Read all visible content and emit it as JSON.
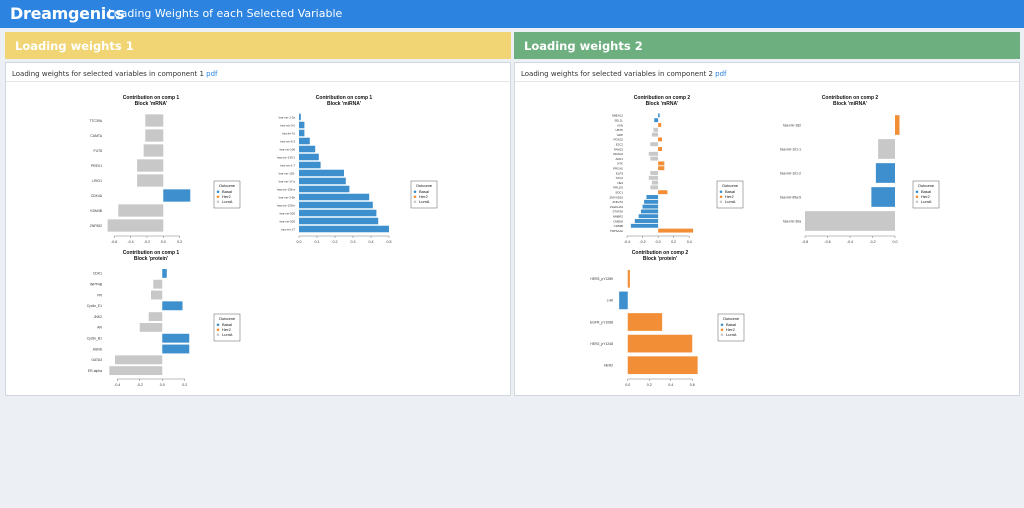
{
  "header": {
    "logo": "Dreamgenics",
    "title": "Loading Weights of each Selected Variable"
  },
  "panels": [
    {
      "title": "Loading weights 1",
      "color": "#f1d574",
      "caption": "Loading weights for selected variables in component 1",
      "pdf": "pdf"
    },
    {
      "title": "Loading weights 2",
      "color": "#6eaf80",
      "caption": "Loading weights for selected variables in component 2",
      "pdf": "pdf"
    }
  ],
  "colors": {
    "Basal": "#3d8fcd",
    "Her2": "#f28e36",
    "LumA": "#c8c8c8"
  },
  "chart_data": [
    {
      "type": "bar",
      "orientation": "horizontal",
      "title": "Contribution on comp 1",
      "subtitle": "Block 'mRNA'",
      "categories": [
        "TTC39A",
        "CAMTA",
        "FUT8",
        "PREX1",
        "LRIG1",
        "CDK4A",
        "KDM4B",
        "ZNF552"
      ],
      "values": [
        -0.22,
        -0.22,
        -0.24,
        -0.32,
        -0.32,
        0.33,
        -0.55,
        -0.68
      ],
      "groups": [
        "LumA",
        "LumA",
        "LumA",
        "LumA",
        "LumA",
        "Basal",
        "LumA",
        "LumA"
      ],
      "xlim": [
        -0.7,
        0.4
      ],
      "xticks": [
        -0.6,
        -0.4,
        -0.2,
        0.0,
        0.2
      ],
      "legend": {
        "title": "Outcome",
        "entries": [
          "Basal",
          "Her2",
          "LumA"
        ]
      }
    },
    {
      "type": "bar",
      "orientation": "horizontal",
      "title": "Contribution on comp 1",
      "subtitle": "Block 'miRNA'",
      "categories": [
        "hsa-mir-1-3a",
        "hsa-mir-3-0",
        "hsa-let-7d",
        "hsa-mir-5-3",
        "hsa-mir-106",
        "hsa-mir-130-1",
        "hsa-mir-1-7",
        "hsa-mir-153-",
        "hsa-mir-17-a",
        "hsa-mir-196-a",
        "hsa-mir-3-5b",
        "hsa-mir-130-b",
        "hsa-mir-505",
        "hsa-mir-505",
        "hsa-mir-17"
      ],
      "values": [
        0.01,
        0.03,
        0.03,
        0.06,
        0.09,
        0.11,
        0.12,
        0.25,
        0.26,
        0.28,
        0.39,
        0.41,
        0.43,
        0.44,
        0.5
      ],
      "groups": [
        "Basal",
        "Basal",
        "Basal",
        "Basal",
        "Basal",
        "Basal",
        "Basal",
        "Basal",
        "Basal",
        "Basal",
        "Basal",
        "Basal",
        "Basal",
        "Basal",
        "Basal"
      ],
      "xlim": [
        0,
        0.5
      ],
      "xticks": [
        0.0,
        0.1,
        0.2,
        0.3,
        0.4,
        0.5
      ],
      "legend": {
        "title": "Outcome",
        "entries": [
          "Basal",
          "Her2",
          "LumA"
        ]
      }
    },
    {
      "type": "bar",
      "orientation": "horizontal",
      "title": "Contribution on comp 1",
      "subtitle": "Block 'protein'",
      "categories": [
        "CDK1",
        "INPP4B",
        "PR",
        "Cyclin_E1",
        "JNK2",
        "AR",
        "Cyclin_B1",
        "ASNS",
        "GATA3",
        "ER-alpha"
      ],
      "values": [
        0.04,
        -0.08,
        -0.1,
        0.18,
        -0.12,
        -0.2,
        0.24,
        0.24,
        -0.42,
        -0.47
      ],
      "groups": [
        "Basal",
        "LumA",
        "LumA",
        "Basal",
        "LumA",
        "LumA",
        "Basal",
        "Basal",
        "LumA",
        "LumA"
      ],
      "xlim": [
        -0.5,
        0.3
      ],
      "xticks": [
        -0.4,
        -0.2,
        0.0,
        0.2
      ],
      "legend": {
        "title": "Outcome",
        "entries": [
          "Basal",
          "Her2",
          "LumA"
        ]
      }
    },
    {
      "type": "bar",
      "orientation": "horizontal",
      "title": "Contribution on comp 2",
      "subtitle": "Block 'mRNA'",
      "categories": [
        "NBEAL2",
        "SEL1L",
        "ASN",
        "UBTF",
        "GRP",
        "PDSS2",
        "E2C2",
        "FAM22",
        "DDAH2",
        "AKR1",
        "NTK",
        "PRCAS",
        "ELP3",
        "STC2",
        "NE3",
        "PRLDS",
        "SDC1",
        "ZMYND10",
        "ZNF270",
        "PLEKHA4",
        "STAT5A",
        "NMBR2",
        "CNBD8",
        "CD83B",
        "TRPSA4A"
      ],
      "values": [
        0.02,
        -0.05,
        0.04,
        -0.06,
        -0.08,
        0.05,
        -0.1,
        0.05,
        -0.12,
        -0.1,
        0.08,
        0.08,
        -0.1,
        -0.12,
        -0.08,
        -0.1,
        0.12,
        -0.15,
        -0.18,
        -0.2,
        -0.22,
        -0.25,
        -0.3,
        -0.35,
        0.45
      ],
      "groups": [
        "Basal",
        "Basal",
        "Her2",
        "LumA",
        "LumA",
        "Her2",
        "LumA",
        "Her2",
        "LumA",
        "LumA",
        "Her2",
        "Her2",
        "LumA",
        "LumA",
        "LumA",
        "LumA",
        "Her2",
        "Basal",
        "Basal",
        "Basal",
        "Basal",
        "Basal",
        "Basal",
        "Basal",
        "Her2"
      ],
      "xlim": [
        -0.4,
        0.5
      ],
      "xticks": [
        -0.4,
        -0.2,
        0.0,
        0.2,
        0.4
      ],
      "legend": {
        "title": "Outcome",
        "entries": [
          "Basal",
          "Her2",
          "LumA"
        ]
      }
    },
    {
      "type": "bar",
      "orientation": "horizontal",
      "title": "Contribution on comp 2",
      "subtitle": "Block 'miRNA'",
      "categories": [
        "hsa-mir-182",
        "hsa-mir-101-1",
        "hsa-mir-101-2",
        "hsa-mir-99a-5",
        "hsa-mir-30a"
      ],
      "values": [
        0.04,
        -0.15,
        -0.17,
        -0.21,
        -0.8
      ],
      "groups": [
        "Her2",
        "LumA",
        "Basal",
        "Basal",
        "LumA"
      ],
      "xlim": [
        -0.8,
        0.0
      ],
      "xticks": [
        -0.8,
        -0.6,
        -0.4,
        -0.2,
        0.0
      ],
      "legend": {
        "title": "Outcome",
        "entries": [
          "Basal",
          "Her2",
          "LumA"
        ]
      }
    },
    {
      "type": "bar",
      "orientation": "horizontal",
      "title": "Contribution on comp 2",
      "subtitle": "Block 'protein'",
      "categories": [
        "HER3_pY1289",
        "c-kit",
        "EGFR_pY1068",
        "HER2_pY1248",
        "HER2"
      ],
      "values": [
        0.02,
        -0.08,
        0.32,
        0.6,
        0.65
      ],
      "groups": [
        "Her2",
        "Basal",
        "Her2",
        "Her2",
        "Her2"
      ],
      "xlim": [
        -0.1,
        0.7
      ],
      "xticks": [
        0.0,
        0.2,
        0.4,
        0.6
      ],
      "legend": {
        "title": "Outcome",
        "entries": [
          "Basal",
          "Her2",
          "LumA"
        ]
      }
    }
  ]
}
